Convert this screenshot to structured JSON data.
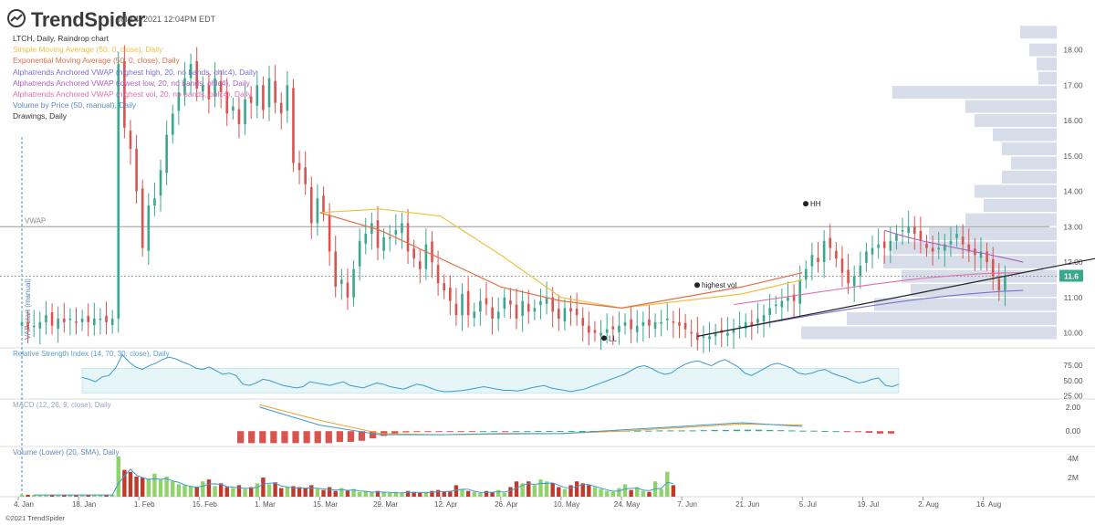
{
  "header": {
    "brand": "TrendSpider",
    "timestamp": "Jul 14, 2021 12:04PM EDT"
  },
  "legend": [
    {
      "label": "LTCH, Daily, Raindrop chart",
      "color": "#333333"
    },
    {
      "label": "Simple Moving Average (50, 0, close), Daily",
      "color": "#f0c040"
    },
    {
      "label": "Exponential Moving Average (50, 0, close), Daily",
      "color": "#e0704a"
    },
    {
      "label": "Alphatrends Anchored VWAP (highest high, 20, no bands, ohlc4), Daily",
      "color": "#7a6fd0"
    },
    {
      "label": "Alphatrends Anchored VWAP (lowest low, 20, no bands, ohlc4), Daily",
      "color": "#b060c0"
    },
    {
      "label": "Alphatrends Anchored VWAP (highest vol, 20, no bands, ohlc4), Daily",
      "color": "#e070b0"
    },
    {
      "label": "Volume by Price (50, manual), Daily",
      "color": "#5a8ac0"
    },
    {
      "label": "Drawings, Daily",
      "color": "#333333"
    }
  ],
  "annotations": {
    "vwap_label": "VWAP",
    "hh": "HH",
    "highest_vol": "highest vol",
    "ll": "LL",
    "vap_start": "VAP start (manual)",
    "last_price": "11.6"
  },
  "footer": "©2021 TrendSpider",
  "colors": {
    "up": "#3aa88c",
    "down": "#d9534f",
    "vol_up": "#8fd36a",
    "vol_down": "#c0392b",
    "vap": "#c9d3e3"
  },
  "chart_data": [
    {
      "type": "candlestick",
      "title": "LTCH, Daily, Raindrop chart",
      "y_ticks": [
        "10.00",
        "11.00",
        "12.00",
        "13.00",
        "14.00",
        "15.00",
        "16.00",
        "17.00",
        "18.00"
      ],
      "ylim": [
        9.6,
        19.1
      ],
      "x_tick_labels": [
        "4. Jan",
        "18. Jan",
        "1. Feb",
        "15. Feb",
        "1. Mar",
        "15. Mar",
        "29. Mar",
        "12. Apr",
        "26. Apr",
        "10. May",
        "24. May",
        "7. Jun",
        "21. Jun",
        "5. Jul",
        "19. Jul",
        "2. Aug",
        "16. Aug"
      ],
      "vwap_level": 13.0,
      "last_price": 11.6,
      "closes": [
        10.3,
        10.1,
        10.2,
        10.3,
        10.5,
        10.2,
        10.4,
        10.3,
        10.4,
        10.3,
        10.4,
        10.3,
        10.4,
        10.4,
        10.3,
        10.4,
        17.6,
        15.8,
        15.2,
        14.0,
        12.4,
        13.6,
        13.8,
        14.6,
        15.6,
        16.2,
        16.8,
        17.2,
        17.6,
        16.9,
        17.0,
        16.6,
        17.2,
        16.8,
        16.2,
        16.4,
        15.9,
        16.6,
        16.5,
        17.0,
        16.3,
        17.2,
        16.5,
        16.2,
        17.0,
        14.8,
        14.6,
        14.2,
        13.1,
        13.8,
        13.4,
        12.3,
        11.3,
        11.5,
        11.0,
        11.8,
        12.6,
        12.8,
        13.1,
        12.4,
        12.7,
        12.7,
        12.9,
        13.1,
        12.3,
        12.1,
        11.8,
        12.5,
        12.0,
        11.4,
        11.2,
        10.9,
        10.5,
        11.1,
        10.5,
        10.6,
        10.9,
        10.8,
        10.4,
        10.6,
        11.0,
        10.8,
        10.4,
        10.9,
        10.6,
        10.7,
        10.9,
        11.0,
        10.6,
        10.4,
        10.7,
        10.6,
        10.5,
        10.2,
        10.0,
        10.0,
        10.0,
        10.1,
        10.1,
        10.2,
        10.3,
        10.1,
        10.2,
        10.3,
        10.2,
        10.3,
        10.3,
        10.4,
        10.3,
        10.2,
        10.1,
        10.0,
        9.8,
        9.9,
        9.9,
        10.0,
        10.0,
        10.0,
        10.1,
        10.2,
        10.3,
        10.2,
        10.4,
        10.5,
        10.7,
        10.8,
        10.9,
        11.0,
        10.9,
        11.5,
        11.8,
        12.2,
        12.0,
        12.6,
        12.4,
        12.1,
        11.7,
        11.4,
        11.6,
        11.9,
        12.3,
        12.4,
        12.5,
        12.4,
        12.6,
        12.8,
        12.9,
        13.0,
        12.8,
        12.6,
        12.4,
        12.3,
        12.4,
        12.5,
        12.6,
        12.8,
        12.5,
        12.3,
        12.2,
        12.3,
        12.0,
        11.6,
        11.2,
        11.6
      ],
      "indicators": {
        "sma50": [
          {
            "x": "15. Mar",
            "y": 13.4
          },
          {
            "x": "29. Mar",
            "y": 13.5
          },
          {
            "x": "12. Apr",
            "y": 13.3
          },
          {
            "x": "26. Apr",
            "y": 12.2
          },
          {
            "x": "10. May",
            "y": 11.0
          },
          {
            "x": "24. May",
            "y": 10.7
          },
          {
            "x": "7. Jun",
            "y": 10.9
          },
          {
            "x": "21. Jun",
            "y": 11.1
          },
          {
            "x": "5. Jul",
            "y": 11.5
          }
        ],
        "ema50": [
          {
            "x": "15. Mar",
            "y": 13.4
          },
          {
            "x": "29. Mar",
            "y": 12.9
          },
          {
            "x": "12. Apr",
            "y": 12.1
          },
          {
            "x": "26. Apr",
            "y": 11.3
          },
          {
            "x": "10. May",
            "y": 10.9
          },
          {
            "x": "24. May",
            "y": 10.7
          },
          {
            "x": "7. Jun",
            "y": 11.0
          },
          {
            "x": "21. Jun",
            "y": 11.3
          },
          {
            "x": "5. Jul",
            "y": 11.7
          }
        ]
      }
    },
    {
      "type": "line",
      "title": "Relative Strength Index (14, 70, 30, close), Daily",
      "y_ticks": [
        "75.00",
        "50.00",
        "25.00"
      ],
      "ylim": [
        20,
        100
      ],
      "band": [
        30,
        70
      ],
      "values": [
        55,
        52,
        48,
        56,
        58,
        70,
        92,
        80,
        72,
        68,
        74,
        78,
        84,
        88,
        85,
        80,
        76,
        70,
        68,
        72,
        66,
        60,
        62,
        58,
        44,
        42,
        46,
        52,
        50,
        46,
        42,
        40,
        38,
        40,
        48,
        46,
        44,
        42,
        45,
        48,
        42,
        40,
        38,
        42,
        46,
        44,
        40,
        38,
        36,
        40,
        44,
        42,
        38,
        34,
        32,
        32,
        33,
        34,
        36,
        38,
        40,
        38,
        36,
        34,
        34,
        33,
        35,
        38,
        40,
        42,
        38,
        36,
        34,
        32,
        34,
        36,
        40,
        44,
        48,
        52,
        56,
        60,
        66,
        72,
        74,
        70,
        64,
        60,
        62,
        70,
        76,
        80,
        82,
        78,
        74,
        80,
        84,
        78,
        72,
        62,
        58,
        64,
        70,
        76,
        78,
        74,
        70,
        62,
        60,
        62,
        66,
        68,
        62,
        58,
        55,
        50,
        46,
        48,
        52,
        54,
        42,
        40,
        44
      ]
    },
    {
      "type": "bar",
      "title": "MACD (12, 26, 9, close), Daily",
      "y_ticks": [
        "2.00",
        "0.00"
      ],
      "ylim": [
        -1.2,
        2.6
      ],
      "histogram": [
        -1.0,
        -1.0,
        -1.0,
        -1.0,
        -1.0,
        -1.0,
        -1.0,
        -1.0,
        -1.0,
        -0.9,
        -0.9,
        -0.8,
        -0.6,
        -0.4,
        -0.2,
        -0.1,
        -0.05,
        -0.02,
        -0.02,
        -0.02,
        -0.02,
        -0.02,
        0.0,
        0.0,
        -0.02,
        0.0,
        0.0,
        0.02,
        0.02,
        0.02,
        0.02,
        0.02,
        0.02,
        0.02,
        0.04,
        0.04,
        0.04,
        0.04,
        0.06,
        0.06,
        0.06,
        0.06,
        0.08,
        0.1,
        0.1,
        0.12,
        0.12,
        0.12,
        0.1,
        0.08,
        0.06,
        0.04,
        0.04,
        0.02,
        0.0,
        -0.04,
        -0.08,
        -0.14,
        -0.2,
        -0.2
      ],
      "macd_line": [
        {
          "x": "1. Mar",
          "y": 2.0
        },
        {
          "x": "15. Mar",
          "y": 0.5
        },
        {
          "x": "29. Mar",
          "y": -0.3
        },
        {
          "x": "12. Apr",
          "y": -0.3
        },
        {
          "x": "26. Apr",
          "y": -0.2
        },
        {
          "x": "10. May",
          "y": -0.2
        },
        {
          "x": "24. May",
          "y": 0.1
        },
        {
          "x": "7. Jun",
          "y": 0.4
        },
        {
          "x": "21. Jun",
          "y": 0.7
        },
        {
          "x": "5. Jul",
          "y": 0.4
        }
      ],
      "signal_line": [
        {
          "x": "1. Mar",
          "y": 2.2
        },
        {
          "x": "15. Mar",
          "y": 0.9
        },
        {
          "x": "29. Mar",
          "y": -0.2
        },
        {
          "x": "12. Apr",
          "y": -0.3
        },
        {
          "x": "26. Apr",
          "y": -0.25
        },
        {
          "x": "10. May",
          "y": -0.2
        },
        {
          "x": "24. May",
          "y": 0.0
        },
        {
          "x": "7. Jun",
          "y": 0.3
        },
        {
          "x": "21. Jun",
          "y": 0.6
        },
        {
          "x": "5. Jul",
          "y": 0.5
        }
      ]
    },
    {
      "type": "bar",
      "title": "Volume (Lower) (20, SMA), Daily",
      "y_ticks": [
        "4M",
        "2M"
      ],
      "ylim": [
        0,
        4.2
      ],
      "values": [
        0.2,
        0.2,
        0.2,
        0.2,
        0.2,
        0.2,
        0.2,
        0.2,
        0.2,
        0.2,
        0.2,
        0.2,
        0.2,
        0.2,
        0.2,
        0.2,
        4.2,
        2.8,
        2.6,
        2.1,
        2.0,
        1.9,
        2.4,
        1.8,
        2.1,
        1.6,
        1.3,
        1.2,
        1.1,
        1.0,
        1.6,
        1.8,
        1.1,
        1.4,
        1.0,
        0.9,
        1.2,
        0.8,
        1.0,
        1.4,
        2.0,
        1.3,
        1.5,
        0.9,
        1.0,
        1.1,
        1.0,
        0.9,
        1.2,
        0.8,
        0.7,
        1.0,
        0.6,
        0.9,
        0.7,
        0.8,
        0.5,
        0.6,
        0.5,
        0.6,
        0.5,
        0.4,
        0.5,
        0.4,
        0.6,
        0.5,
        0.4,
        0.5,
        0.6,
        0.7,
        0.5,
        0.6,
        1.2,
        0.8,
        0.6,
        0.5,
        0.4,
        0.6,
        0.5,
        0.7,
        0.4,
        1.0,
        1.6,
        1.4,
        1.6,
        1.2,
        1.8,
        1.6,
        1.4,
        1.0,
        0.8,
        1.2,
        1.6,
        1.4,
        1.2,
        1.0,
        0.8,
        0.6,
        0.5,
        0.9,
        1.3,
        0.7,
        1.0,
        0.6,
        0.5,
        1.6,
        0.8,
        2.6,
        1.2
      ]
    }
  ]
}
